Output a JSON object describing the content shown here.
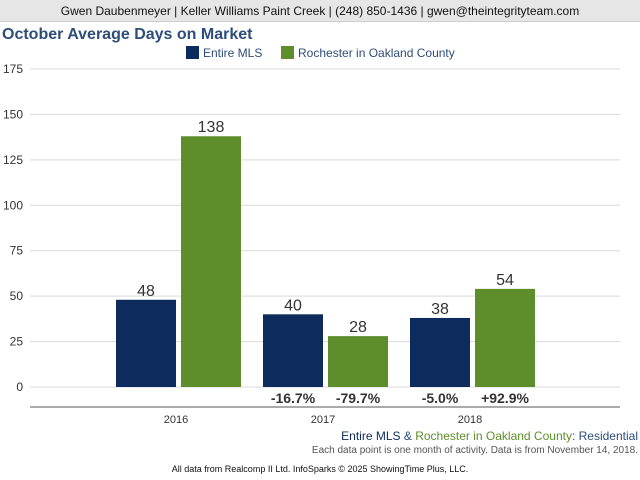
{
  "header": {
    "contact": "Gwen Daubenmeyer | Keller Williams Paint Creek | (248) 850-1436 | gwen@theintegrityteam.com"
  },
  "colors": {
    "entire_mls": "#0d2b5c",
    "rochester": "#5e8e2c",
    "title": "#2d4d7a",
    "grid": "#d9d9d9"
  },
  "chart_data": {
    "type": "bar",
    "title": "October Average Days on Market",
    "xlabel": "",
    "ylabel": "",
    "ylim": [
      0,
      175
    ],
    "yticks": [
      "0",
      "25",
      "50",
      "75",
      "100",
      "125",
      "150",
      "175"
    ],
    "grid": true,
    "legend_position": "top",
    "categories": [
      "2016",
      "2017",
      "2018"
    ],
    "series": [
      {
        "name": "Entire MLS",
        "color": "#0d2b5c",
        "values": [
          48,
          40,
          38
        ],
        "labels": [
          "48",
          "40",
          "38"
        ],
        "changes": [
          "",
          "-16.7%",
          "-5.0%"
        ]
      },
      {
        "name": "Rochester in Oakland County",
        "color": "#5e8e2c",
        "values": [
          138,
          28,
          54
        ],
        "labels": [
          "138",
          "28",
          "54"
        ],
        "changes": [
          "",
          "-79.7%",
          "+92.9%"
        ]
      }
    ]
  },
  "footer": {
    "series_a": "Entire MLS",
    "amp": " & ",
    "series_b": "Rochester in Oakland County",
    "suffix": ": Residential",
    "note": "Each data point is one month of activity. Data is from November 14, 2018.",
    "credit": "All data from Realcomp II Ltd. InfoSparks © 2025 ShowingTime Plus, LLC."
  }
}
